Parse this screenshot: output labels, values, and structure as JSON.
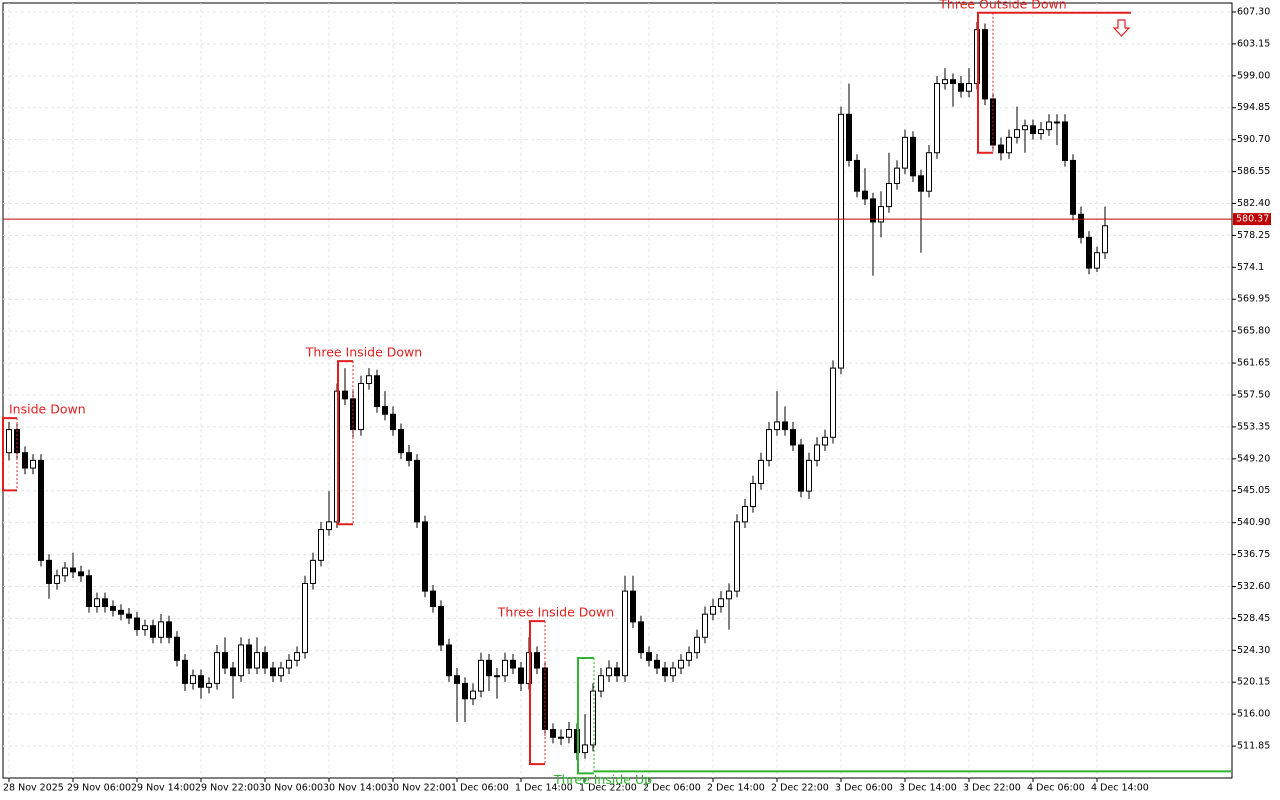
{
  "chart_data": {
    "type": "candlestick",
    "ylim": [
      507.7,
      608.47
    ],
    "yticks": [
      {
        "value": 607.3,
        "label": "607.30"
      },
      603.15,
      {
        "value": 599,
        "label": "599.00"
      },
      594.85,
      {
        "value": 590.7,
        "label": "590.70"
      },
      586.55,
      {
        "value": 582.4,
        "label": "582.40"
      },
      578.25,
      574.1,
      569.95,
      {
        "value": 565.8,
        "label": "565.80"
      },
      561.65,
      {
        "value": 557.5,
        "label": "557.50"
      },
      553.35,
      {
        "value": 549.2,
        "label": "549.20"
      },
      545.05,
      {
        "value": 540.9,
        "label": "540.90"
      },
      536.75,
      {
        "value": 532.6,
        "label": "532.60"
      },
      528.45,
      {
        "value": 524.3,
        "label": "524.30"
      },
      520.15,
      {
        "value": 516,
        "label": "516.00"
      },
      511.85
    ],
    "xticks": [
      "28 Nov 2025",
      "29 Nov 06:00",
      "29 Nov 14:00",
      "29 Nov 22:00",
      "30 Nov 06:00",
      "30 Nov 14:00",
      "30 Nov 22:00",
      "1 Dec 06:00",
      "1 Dec 14:00",
      "1 Dec 22:00",
      "2 Dec 06:00",
      "2 Dec 14:00",
      "2 Dec 22:00",
      "3 Dec 06:00",
      "3 Dec 14:00",
      "3 Dec 22:00",
      "4 Dec 06:00",
      "4 Dec 14:00"
    ],
    "grid": true,
    "up_color": "#ffffff",
    "down_color": "#000000",
    "current_price": 580.37,
    "current_price_color": "#c00000",
    "patterns": [
      {
        "label": "Inside Down",
        "color": "#e02020",
        "high": 554.5,
        "low": 545.1
      },
      {
        "label": "Three Inside Down",
        "color": "#e02020",
        "high": 561.9,
        "low": 540.7
      },
      {
        "label": "Three Inside Down",
        "color": "#e02020",
        "high": 528.1,
        "low": 509.5
      },
      {
        "label": "Three Inside Up",
        "color": "#2fb52f",
        "high": 523.3,
        "low": 508.3
      },
      {
        "label": "Three Outside Down",
        "color": "#e02020",
        "high": 607.2,
        "low": 589
      }
    ],
    "candles": [
      [
        550,
        554,
        549,
        553
      ],
      [
        553,
        553.8,
        549.2,
        550
      ],
      [
        550,
        550.8,
        547.2,
        548
      ],
      [
        548,
        549.8,
        547.2,
        549
      ],
      [
        549,
        549.8,
        535.2,
        536
      ],
      [
        536,
        536.8,
        531,
        533
      ],
      [
        533,
        534.8,
        532.2,
        534
      ],
      [
        534,
        535.8,
        533.2,
        535
      ],
      [
        535,
        537,
        533.7,
        534.5
      ],
      [
        534.5,
        535.3,
        533.2,
        534
      ],
      [
        534,
        534.8,
        529.2,
        530
      ],
      [
        530,
        531.8,
        529.2,
        531
      ],
      [
        531,
        531.8,
        529.2,
        530
      ],
      [
        530,
        530.8,
        528.7,
        529.5
      ],
      [
        529.5,
        530.3,
        528.2,
        529
      ],
      [
        529,
        529.8,
        527.7,
        528.5
      ],
      [
        528.5,
        529.3,
        526.2,
        527
      ],
      [
        527,
        528.3,
        526.2,
        527.5
      ],
      [
        527.5,
        528.3,
        525.2,
        526
      ],
      [
        526,
        529,
        525.2,
        528
      ],
      [
        528,
        528.8,
        525.2,
        526
      ],
      [
        526,
        526.8,
        522.2,
        523
      ],
      [
        523,
        523.8,
        519,
        520
      ],
      [
        520,
        521.8,
        519.2,
        521
      ],
      [
        521,
        521.8,
        518,
        519.5
      ],
      [
        519.5,
        520.8,
        518.7,
        520
      ],
      [
        520,
        525,
        519.2,
        524
      ],
      [
        524,
        526,
        521.2,
        522
      ],
      [
        522,
        522.8,
        518,
        521
      ],
      [
        521,
        526,
        520.2,
        525
      ],
      [
        525,
        525.8,
        521.2,
        522
      ],
      [
        522,
        526,
        521.2,
        524
      ],
      [
        524,
        524.8,
        521.2,
        522
      ],
      [
        522,
        522.8,
        520.2,
        521
      ],
      [
        521,
        522.8,
        520.2,
        522
      ],
      [
        522,
        523.8,
        521.2,
        523
      ],
      [
        523,
        524.8,
        522.2,
        524
      ],
      [
        524,
        534,
        523.2,
        533
      ],
      [
        533,
        537,
        532.2,
        536
      ],
      [
        536,
        541,
        535.2,
        540
      ],
      [
        540,
        545,
        539.2,
        541
      ],
      [
        541,
        559,
        540.2,
        558
      ],
      [
        558,
        561,
        556.2,
        557
      ],
      [
        557,
        558,
        552,
        553
      ],
      [
        553,
        560,
        552.2,
        559
      ],
      [
        559,
        561,
        558.2,
        560
      ],
      [
        560,
        560.8,
        555.2,
        556
      ],
      [
        556,
        558,
        554.2,
        555
      ],
      [
        555,
        556,
        552.2,
        553
      ],
      [
        553,
        553.8,
        549.2,
        550
      ],
      [
        550,
        551,
        548.2,
        549
      ],
      [
        549,
        549.8,
        540.2,
        541
      ],
      [
        541,
        541.8,
        531.2,
        532
      ],
      [
        532,
        532.8,
        529.2,
        530
      ],
      [
        530,
        530.8,
        524.2,
        525
      ],
      [
        525,
        525.8,
        520.2,
        521
      ],
      [
        521,
        522,
        515,
        520
      ],
      [
        520,
        520.8,
        515,
        518
      ],
      [
        518,
        520,
        517.2,
        519
      ],
      [
        519,
        524,
        518.2,
        523
      ],
      [
        523,
        523.8,
        519,
        521
      ],
      [
        521,
        522,
        518,
        521
      ],
      [
        521,
        524,
        520.2,
        523
      ],
      [
        523,
        523.8,
        521.2,
        522
      ],
      [
        522,
        522.8,
        519,
        520
      ],
      [
        520,
        526,
        519.2,
        524
      ],
      [
        524,
        524.8,
        521.2,
        522
      ],
      [
        522,
        522.8,
        513.2,
        514
      ],
      [
        514,
        514.8,
        512.2,
        513
      ],
      [
        513,
        514,
        512,
        513
      ],
      [
        513,
        515,
        512.2,
        514
      ],
      [
        514,
        514.8,
        510,
        511
      ],
      [
        511,
        516,
        510.2,
        512
      ],
      [
        512,
        520,
        511.2,
        519
      ],
      [
        519,
        522,
        518.2,
        521
      ],
      [
        521,
        523,
        520.2,
        522
      ],
      [
        522,
        522.8,
        520.2,
        521
      ],
      [
        521,
        534,
        520.2,
        532
      ],
      [
        532,
        534,
        527.2,
        528
      ],
      [
        528,
        528.8,
        523.2,
        524
      ],
      [
        524,
        524.8,
        522.2,
        523
      ],
      [
        523,
        523.8,
        521.2,
        522
      ],
      [
        522,
        522.8,
        520.2,
        521
      ],
      [
        521,
        522.8,
        520.2,
        522
      ],
      [
        522,
        523.8,
        521.2,
        523
      ],
      [
        523,
        524.8,
        522.2,
        524
      ],
      [
        524,
        527,
        523.2,
        526
      ],
      [
        526,
        530,
        525.2,
        529
      ],
      [
        529,
        531,
        528.2,
        530
      ],
      [
        530,
        532,
        529.2,
        531
      ],
      [
        531,
        533,
        527,
        532
      ],
      [
        532,
        542,
        531.2,
        541
      ],
      [
        541,
        544,
        540.2,
        543
      ],
      [
        543,
        547,
        542.2,
        546
      ],
      [
        546,
        550,
        545.2,
        549
      ],
      [
        549,
        554,
        548.2,
        553
      ],
      [
        553,
        558,
        552.2,
        554
      ],
      [
        554,
        556,
        552.2,
        553
      ],
      [
        553,
        554,
        550.2,
        551
      ],
      [
        551,
        551.8,
        544.2,
        545
      ],
      [
        545,
        550,
        544,
        549
      ],
      [
        549,
        552,
        548.2,
        551
      ],
      [
        551,
        553,
        550.2,
        552
      ],
      [
        552,
        562,
        551.2,
        561
      ],
      [
        561,
        595,
        560.2,
        594
      ],
      [
        594,
        598,
        587.2,
        588
      ],
      [
        588,
        588.8,
        583.2,
        584
      ],
      [
        584,
        587,
        582.2,
        583
      ],
      [
        583,
        583.8,
        573,
        580
      ],
      [
        580,
        584,
        578,
        582
      ],
      [
        582,
        589,
        581.2,
        585
      ],
      [
        585,
        588,
        584.2,
        587
      ],
      [
        587,
        592,
        586.2,
        591
      ],
      [
        591,
        591.8,
        585.2,
        586
      ],
      [
        586,
        586.8,
        576,
        584
      ],
      [
        584,
        590,
        583.2,
        589
      ],
      [
        589,
        599,
        588.2,
        598
      ],
      [
        598,
        600,
        597.2,
        598.5
      ],
      [
        598.5,
        599.3,
        595,
        598
      ],
      [
        598,
        599,
        596.2,
        597
      ],
      [
        597,
        600,
        596.2,
        598
      ],
      [
        598,
        606,
        597.2,
        605
      ],
      [
        605,
        605.8,
        595.2,
        596
      ],
      [
        596,
        596.8,
        589.2,
        590
      ],
      [
        590,
        591,
        588,
        589
      ],
      [
        589,
        592,
        588.2,
        591
      ],
      [
        591,
        595,
        590.2,
        592
      ],
      [
        592,
        593.3,
        589,
        592.5
      ],
      [
        592.5,
        593.3,
        590.7,
        591.5
      ],
      [
        591.5,
        593,
        590.7,
        592
      ],
      [
        592,
        594,
        591.2,
        593
      ],
      [
        593,
        594,
        590,
        593
      ],
      [
        593,
        594,
        587.2,
        588
      ],
      [
        588,
        588.8,
        580.2,
        581
      ],
      [
        581,
        582,
        577.2,
        578
      ],
      [
        578,
        578.8,
        573.2,
        574
      ],
      [
        574,
        576.8,
        573.5,
        576
      ],
      [
        576,
        582,
        575.2,
        579.5
      ]
    ]
  }
}
